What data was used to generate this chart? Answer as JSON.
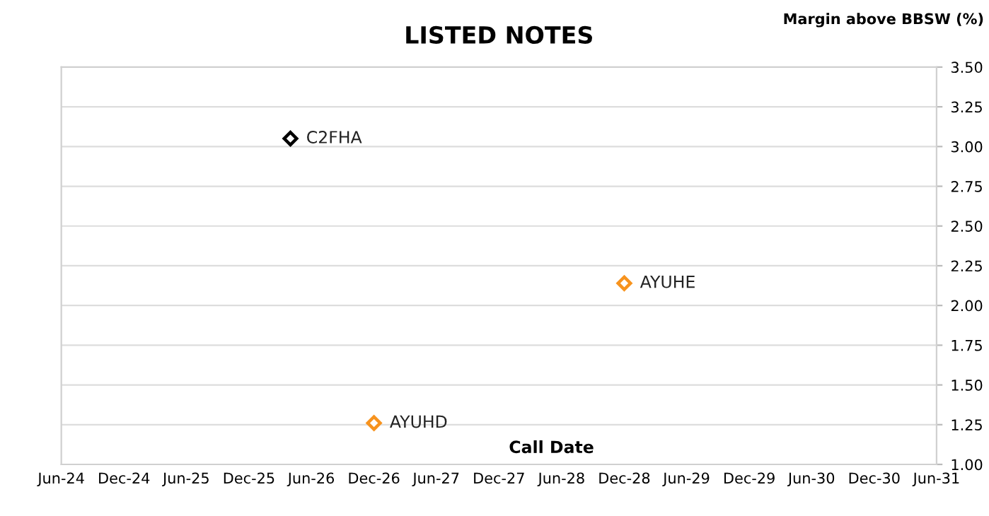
{
  "chart_data": {
    "type": "scatter",
    "title": "LISTED NOTES",
    "xlabel": "Call Date",
    "ylabel": "Margin above BBSW (%)",
    "series": [
      {
        "color": "#000000",
        "x": [
          "2026-04"
        ],
        "values": [
          3.05
        ]
      },
      {
        "color": "#f7931e",
        "x": [
          "2026-12",
          "2028-12"
        ],
        "values": [
          1.26,
          2.14
        ]
      }
    ],
    "annotations": [
      {
        "text": "C2FHA",
        "x": "2026-04",
        "y": 3.05
      },
      {
        "text": "AYUHD",
        "x": "2026-12",
        "y": 1.26
      },
      {
        "text": "AYUHE",
        "x": "2028-12",
        "y": 2.14
      }
    ],
    "xlim": [
      "2024-06",
      "2031-06"
    ],
    "xticks": [
      {
        "value": "2024-06",
        "label": "Jun-24"
      },
      {
        "value": "2024-12",
        "label": "Dec-24"
      },
      {
        "value": "2025-06",
        "label": "Jun-25"
      },
      {
        "value": "2025-12",
        "label": "Dec-25"
      },
      {
        "value": "2026-06",
        "label": "Jun-26"
      },
      {
        "value": "2026-12",
        "label": "Dec-26"
      },
      {
        "value": "2027-06",
        "label": "Jun-27"
      },
      {
        "value": "2027-12",
        "label": "Dec-27"
      },
      {
        "value": "2028-06",
        "label": "Jun-28"
      },
      {
        "value": "2028-12",
        "label": "Dec-28"
      },
      {
        "value": "2029-06",
        "label": "Jun-29"
      },
      {
        "value": "2029-12",
        "label": "Dec-29"
      },
      {
        "value": "2030-06",
        "label": "Jun-30"
      },
      {
        "value": "2030-12",
        "label": "Dec-30"
      },
      {
        "value": "2031-06",
        "label": "Jun-31"
      }
    ],
    "ylim": [
      1.0,
      3.5
    ],
    "yticks": [
      {
        "value": 1.0,
        "label": "1.00"
      },
      {
        "value": 1.25,
        "label": "1.25"
      },
      {
        "value": 1.5,
        "label": "1.50"
      },
      {
        "value": 1.75,
        "label": "1.75"
      },
      {
        "value": 2.0,
        "label": "2.00"
      },
      {
        "value": 2.25,
        "label": "2.25"
      },
      {
        "value": 2.5,
        "label": "2.50"
      },
      {
        "value": 2.75,
        "label": "2.75"
      },
      {
        "value": 3.0,
        "label": "3.00"
      },
      {
        "value": 3.25,
        "label": "3.25"
      },
      {
        "value": 3.5,
        "label": "3.50"
      }
    ],
    "grid": "y",
    "marker": "diamond",
    "legend": false
  }
}
